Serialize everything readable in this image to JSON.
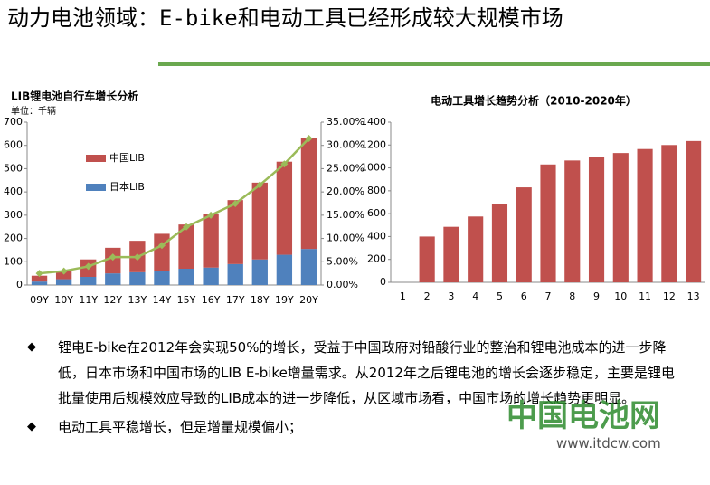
{
  "header": {
    "title": "动力电池领域：E-bike和电动工具已经形成较大规模市场"
  },
  "chart_data": [
    {
      "type": "bar",
      "stacked": true,
      "title": "LIB锂电池自行车增长分析",
      "subtitle": "单位：千辆",
      "categories": [
        "09Y",
        "10Y",
        "11Y",
        "12Y",
        "13Y",
        "14Y",
        "15Y",
        "16Y",
        "17Y",
        "18Y",
        "19Y",
        "20Y"
      ],
      "series": [
        {
          "name": "日本LIB",
          "color": "#4f81bd",
          "values": [
            15,
            25,
            35,
            50,
            55,
            60,
            70,
            75,
            90,
            110,
            130,
            155
          ]
        },
        {
          "name": "中国LIB",
          "color": "#c0504d",
          "values": [
            25,
            35,
            75,
            110,
            135,
            160,
            190,
            230,
            275,
            330,
            400,
            475
          ]
        },
        {
          "color": "#9bbb59",
          "axis": "y2",
          "values": [
            2.5,
            3,
            4,
            6,
            6,
            8.5,
            12.5,
            15,
            17.5,
            21.5,
            26,
            31.5
          ]
        }
      ],
      "ylim": [
        0,
        700
      ],
      "yticks": [
        0,
        100,
        200,
        300,
        400,
        500,
        600,
        700
      ],
      "y2lim": [
        0,
        35
      ],
      "y2ticks": [
        {
          "value": 0,
          "label": "0.00%"
        },
        {
          "value": 5,
          "label": "5.00%"
        },
        {
          "value": 10,
          "label": "10.00%"
        },
        {
          "value": 15,
          "label": "15.00%"
        },
        {
          "value": 20,
          "label": "20.00%"
        },
        {
          "value": 25,
          "label": "25.00%"
        },
        {
          "value": 30,
          "label": "30.00%"
        },
        {
          "value": 35,
          "label": "35.00%"
        }
      ],
      "legend": "upper left"
    },
    {
      "type": "bar",
      "title": "电动工具增长趋势分析（2010-2020年）",
      "categories": [
        "1",
        "2",
        "3",
        "4",
        "5",
        "6",
        "7",
        "8",
        "9",
        "10",
        "11",
        "12",
        "13"
      ],
      "values": [
        null,
        400,
        485,
        575,
        685,
        830,
        1030,
        1065,
        1095,
        1130,
        1165,
        1200,
        1235
      ],
      "color": "#c0504d",
      "ylim": [
        0,
        1400
      ],
      "yticks": [
        0,
        200,
        400,
        600,
        800,
        1000,
        1200,
        1400
      ]
    }
  ],
  "bullets": [
    "锂电E-bike在2012年会实现50%的增长，受益于中国政府对铅酸行业的整治和锂电池成本的进一步降低，日本市场和中国市场的LIB E-bike增量需求。从2012年之后锂电池的增长会逐步稳定，主要是锂电批量使用后规模效应导致的LIB成本的进一步降低，从区域市场看，中国市场的增长趋势更明显。",
    "电动工具平稳增长，但是增量规模偏小；"
  ],
  "watermark": {
    "name": "中国电池网",
    "url": "www.itdcw.com"
  }
}
